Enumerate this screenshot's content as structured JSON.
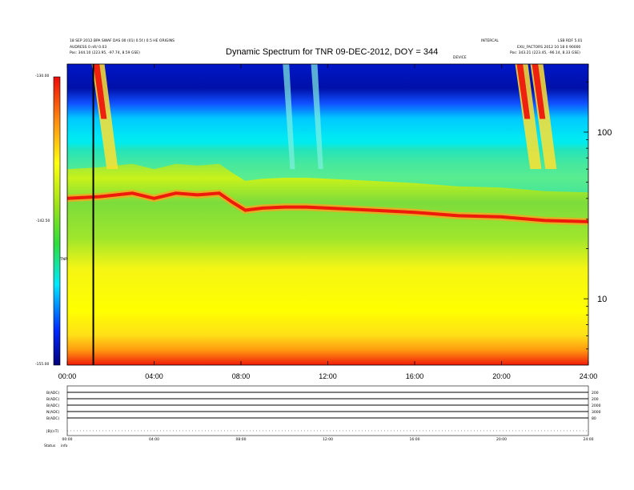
{
  "header": {
    "left_line1": "18 SEP 2012 BPA SWAF DAS 00 (01) 0.5f.) 0.5 HE ORIGINS",
    "left_line2": "AUDRESS 0 nR/ 0.03",
    "left_line3": "Pos:   344.10 (223.95, -97.74, 8.59 GSE)",
    "right_line1": "INTERCAL",
    "right_line2": "LSB RDF 5.01",
    "right_line3": "EXU_FACTORS 2012 10 18 0 90000",
    "right_line4": "Pos:   343.21 (223.45, -96.14, 8.33 GSE)",
    "right_tag": "DEVICE",
    "title": "Dynamic Spectrum for TNR 09-DEC-2012, DOY = 344"
  },
  "colorbar": {
    "top_label": "-130.00",
    "mid_label": "-142.50",
    "bottom_label": "-155.00",
    "unit_label": "TNR"
  },
  "chart_data": {
    "type": "heatmap",
    "title": "Dynamic Spectrum for TNR 09-DEC-2012, DOY = 344",
    "xlabel": "",
    "ylabel": "",
    "x_ticks": [
      "00:00",
      "04:00",
      "08:00",
      "12:00",
      "16:00",
      "20:00",
      "24:00"
    ],
    "x_range_hours": [
      0,
      24
    ],
    "y_scale": "log",
    "y_range": [
      4,
      256
    ],
    "y_ticks": [
      10,
      100
    ],
    "color_range": [
      -155.0,
      -130.0
    ],
    "colormap": "rainbow",
    "bright_line_hours": [
      1.2,
      10.0,
      11.3,
      20.7,
      21.4
    ],
    "plasma_line_khz": [
      [
        0,
        40
      ],
      [
        1.5,
        41
      ],
      [
        3,
        43
      ],
      [
        4,
        40
      ],
      [
        5,
        43
      ],
      [
        6,
        42
      ],
      [
        7,
        43
      ],
      [
        7.6,
        38
      ],
      [
        8.2,
        34
      ],
      [
        9,
        35
      ],
      [
        10,
        35.5
      ],
      [
        11,
        35.5
      ],
      [
        12,
        35
      ],
      [
        14,
        34
      ],
      [
        16,
        33
      ],
      [
        18,
        31.5
      ],
      [
        20,
        31
      ],
      [
        22,
        29.5
      ],
      [
        24,
        29
      ]
    ],
    "vertical_marker_hour": 1.2
  },
  "lower_panel": {
    "row_labels": [
      "B(ADC)",
      "B(ADC)",
      "B(ADC)",
      "N(ADC)",
      "B(ADC)",
      "|B|(nT)"
    ],
    "right_labels": [
      "200",
      "200",
      "2000",
      "3000",
      "80"
    ],
    "x_ticks": [
      "00:00",
      "04:00",
      "08:00",
      "12:00",
      "16:00",
      "20:00",
      "24:00"
    ],
    "footer_label": "Status",
    "footer_value": "info"
  }
}
